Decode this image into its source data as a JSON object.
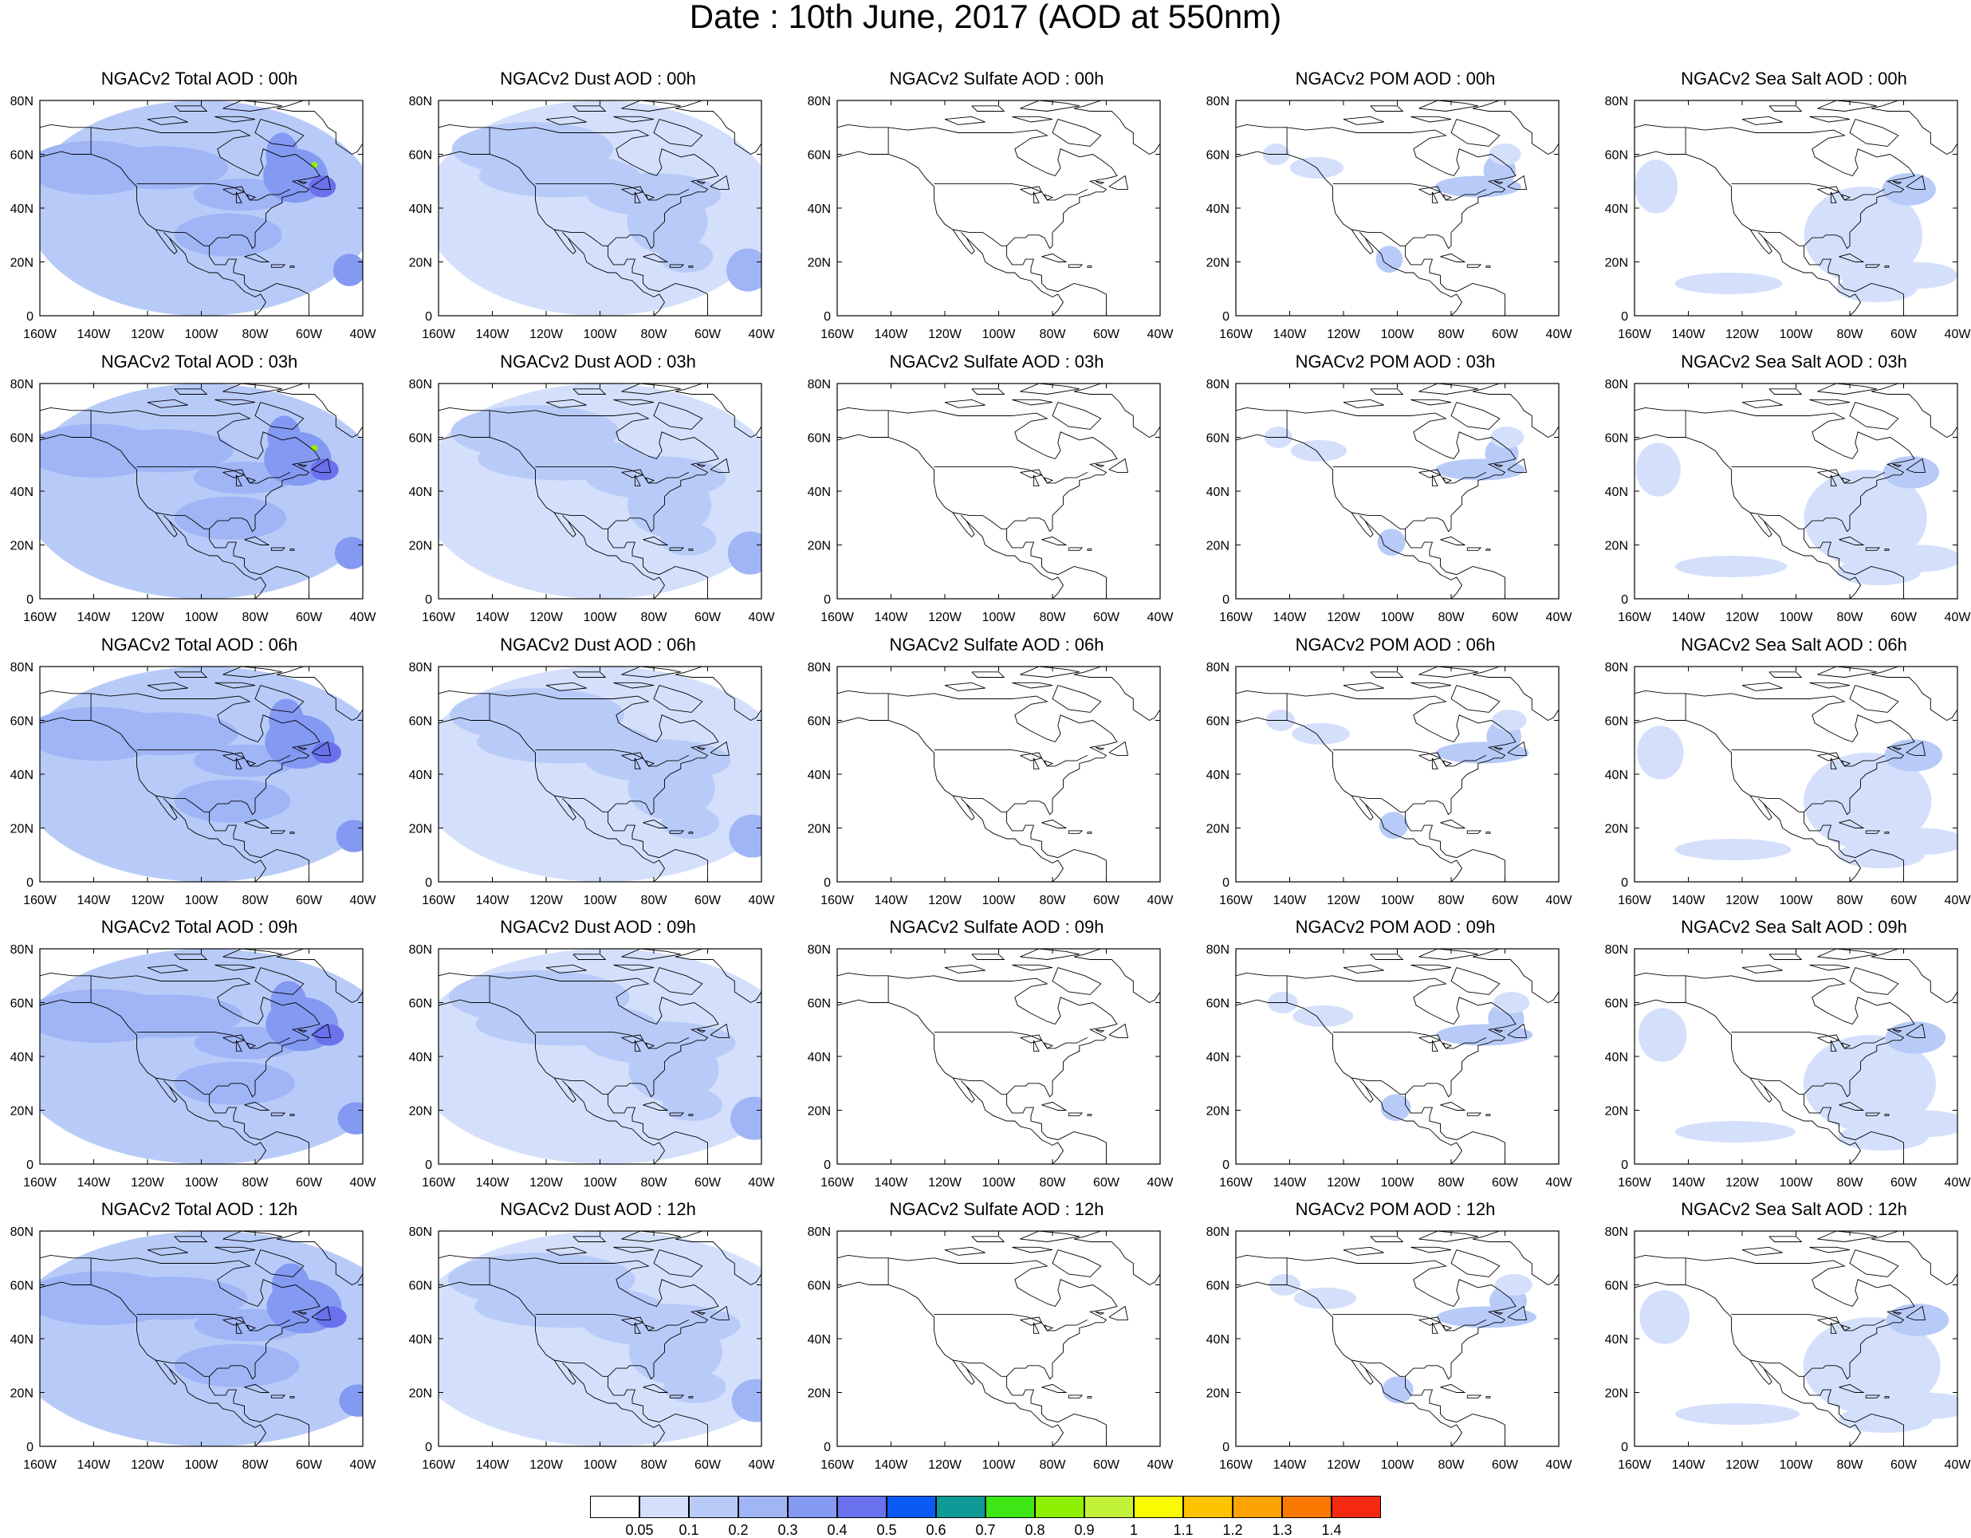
{
  "title": "Date : 10th June, 2017 (AOD at 550nm)",
  "axes": {
    "lat_ticks": [
      "80N",
      "60N",
      "40N",
      "20N",
      "0"
    ],
    "lon_ticks": [
      "160W",
      "140W",
      "120W",
      "100W",
      "80W",
      "60W",
      "40W"
    ]
  },
  "columns": [
    {
      "variable": "total",
      "titles": [
        "NGACv2 Total AOD : 00h",
        "NGACv2 Total AOD : 03h",
        "NGACv2 Total AOD : 06h",
        "NGACv2 Total AOD : 09h",
        "NGACv2 Total AOD  : 12h"
      ]
    },
    {
      "variable": "dust",
      "titles": [
        "NGACv2 Dust AOD : 00h",
        "NGACv2 Dust AOD : 03h",
        "NGACv2 Dust AOD : 06h",
        "NGACv2 Dust AOD : 09h",
        "NGACv2 Dust AOD : 12h"
      ]
    },
    {
      "variable": "sulfate",
      "titles": [
        "NGACv2 Sulfate AOD : 00h",
        "NGACv2 Sulfate AOD : 03h",
        "NGACv2 Sulfate AOD : 06h",
        "NGACv2 Sulfate AOD : 09h",
        "NGACv2 Sulfate AOD : 12h"
      ]
    },
    {
      "variable": "pom",
      "titles": [
        "NGACv2 POM AOD : 00h",
        "NGACv2 POM AOD : 03h",
        "NGACv2 POM AOD : 06h",
        "NGACv2 POM AOD : 09h",
        "NGACv2 POM  AOD : 12h"
      ]
    },
    {
      "variable": "seasalt",
      "titles": [
        "NGACv2 Sea Salt AOD : 00h",
        "NGACv2 Sea Salt AOD : 03h",
        "NGACv2 Sea Salt AOD : 06h",
        "NGACv2 Sea Salt  AOD : 09h",
        "NGACv2 Sea Salt  AOD : 12h"
      ]
    }
  ],
  "colorbar": {
    "colors": [
      "#ffffff",
      "#d4e0fb",
      "#b8cbf8",
      "#9fb5f6",
      "#8399f2",
      "#6a71ec",
      "#0a5bf5",
      "#0e9a97",
      "#3ee616",
      "#8ef000",
      "#c2f23a",
      "#fafa00",
      "#fdc300",
      "#fba200",
      "#fb7800",
      "#f52810"
    ],
    "labels": [
      "0.05",
      "0.1",
      "0.2",
      "0.3",
      "0.4",
      "0.5",
      "0.6",
      "0.7",
      "0.8",
      "0.9",
      "1",
      "1.1",
      "1.2",
      "1.3",
      "1.4"
    ]
  }
}
